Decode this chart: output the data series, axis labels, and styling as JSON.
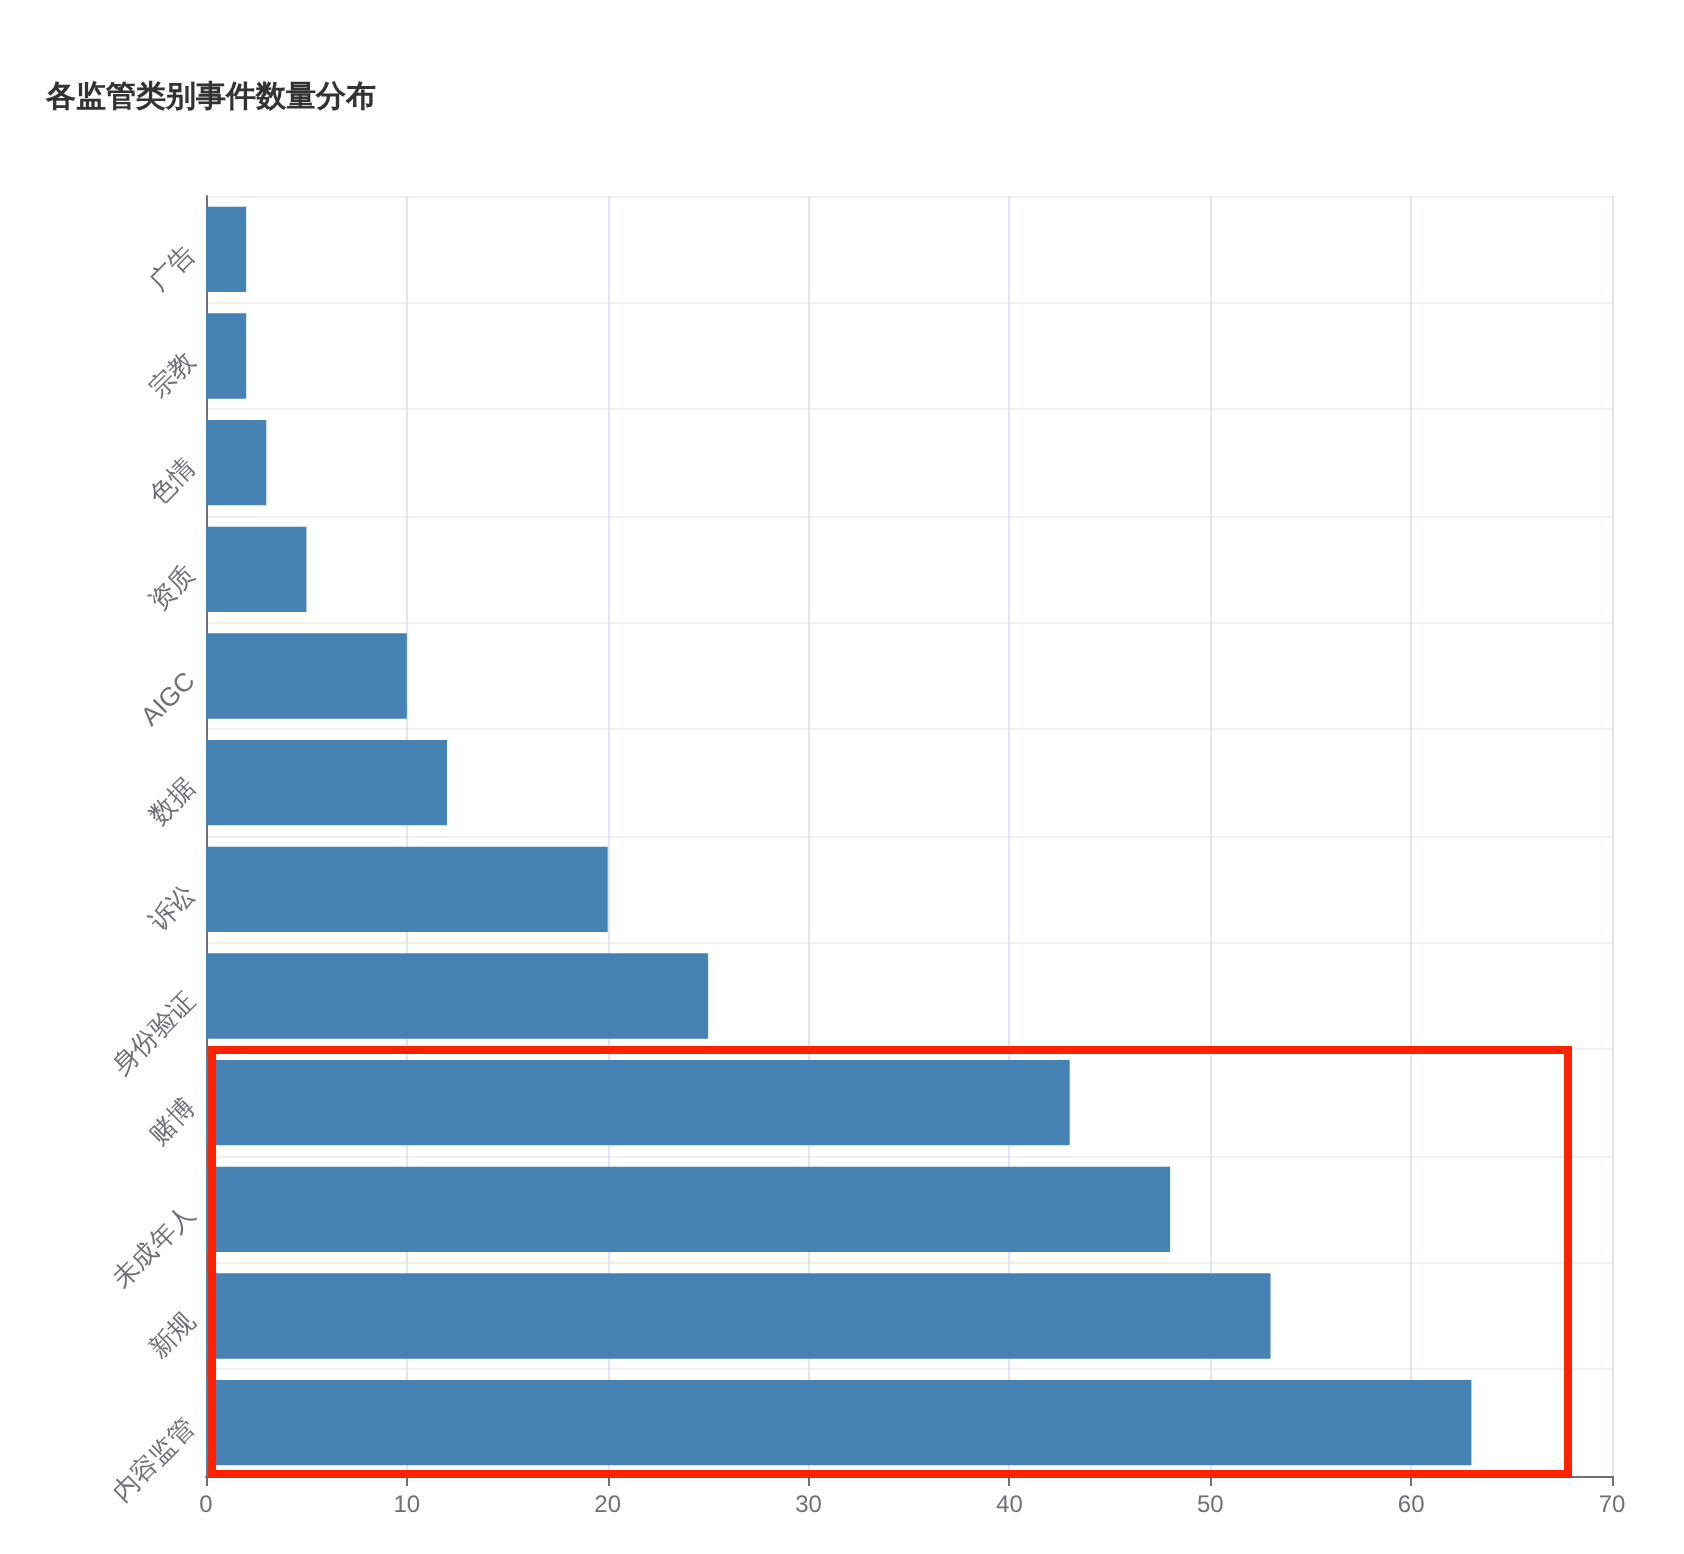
{
  "chart_data": {
    "type": "bar",
    "orientation": "horizontal",
    "title": "各监管类别事件数量分布",
    "categories": [
      "广告",
      "宗教",
      "色情",
      "资质",
      "AIGC",
      "数据",
      "诉讼",
      "身份验证",
      "赌博",
      "未成年人",
      "新规",
      "内容监管"
    ],
    "values": [
      2,
      2,
      3,
      5,
      10,
      12,
      20,
      25,
      43,
      48,
      53,
      63
    ],
    "color": "#4682b4",
    "xlim": [
      0,
      70
    ],
    "xticks": [
      0,
      10,
      20,
      30,
      40,
      50,
      60,
      70
    ],
    "grid": true
  }
}
